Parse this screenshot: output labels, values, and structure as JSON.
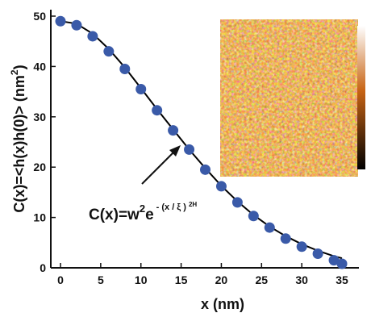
{
  "chart_data": {
    "type": "scatter",
    "title": "",
    "xlabel": "x (nm)",
    "ylabel_parts": {
      "main": "C(x)=<h(x)h(0)> (nm",
      "sup": "2",
      "close": ")"
    },
    "xlim": [
      0,
      36
    ],
    "ylim": [
      0,
      50
    ],
    "xticks": [
      0,
      5,
      10,
      15,
      20,
      25,
      30,
      35
    ],
    "yticks": [
      0,
      10,
      20,
      30,
      40,
      50
    ],
    "grid": false,
    "point_color": "#3a5aa8",
    "fit_color": "#000000",
    "series": [
      {
        "x": [
          0,
          2,
          4,
          6,
          8,
          10,
          12,
          14,
          16,
          18,
          20,
          22,
          24,
          26,
          28,
          30,
          32,
          34,
          35
        ],
        "y": [
          49,
          48.2,
          46,
          43,
          39.5,
          35.5,
          31.3,
          27.3,
          23.5,
          19.5,
          16.2,
          13,
          10.3,
          8,
          5.8,
          4.2,
          2.8,
          1.5,
          0.8
        ]
      }
    ],
    "fit": {
      "x": [
        0,
        2,
        4,
        6,
        8,
        10,
        12,
        14,
        16,
        18,
        20,
        22,
        24,
        26,
        28,
        30,
        32,
        34,
        35
      ],
      "y": [
        49,
        48.5,
        46.5,
        43.5,
        39.8,
        35.7,
        31.5,
        27.5,
        23.5,
        19.8,
        16.3,
        13.2,
        10.5,
        8.2,
        6.3,
        4.7,
        3.4,
        2.3,
        1.9
      ]
    },
    "annotation": {
      "base": "C(x)=w",
      "sup1": "2",
      "e": "e",
      "exp": "- (x / ξ )",
      "exp_sup": "2H"
    }
  },
  "inset": {
    "colors": {
      "low": "#000000",
      "mid": "#c86414",
      "high": "#ffffff",
      "base": "#b4560e"
    }
  }
}
